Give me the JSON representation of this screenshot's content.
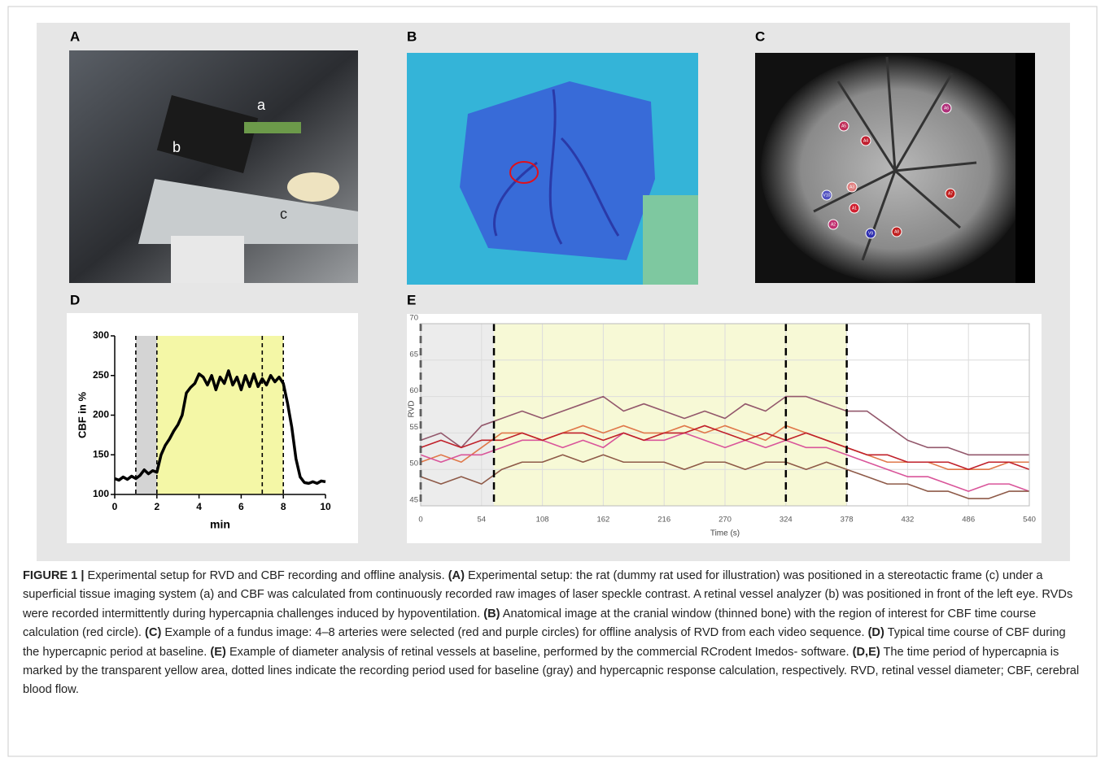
{
  "panels": {
    "A": "A",
    "B": "B",
    "C": "C",
    "D": "D",
    "E": "E"
  },
  "photo_a_labels": [
    "a",
    "b",
    "c"
  ],
  "photo_c_markers": [
    {
      "label": "A5",
      "color": "#c0305a"
    },
    {
      "label": "A4",
      "color": "#c02030"
    },
    {
      "label": "A6",
      "color": "#b0307a"
    },
    {
      "label": "A3",
      "color": "#e08080"
    },
    {
      "label": "V10",
      "color": "#5050c0"
    },
    {
      "label": "A1",
      "color": "#d02030"
    },
    {
      "label": "A7",
      "color": "#c02020"
    },
    {
      "label": "A2",
      "color": "#c03070"
    },
    {
      "label": "V9",
      "color": "#3030b0"
    },
    {
      "label": "A8",
      "color": "#c02020"
    }
  ],
  "chart_data": [
    {
      "type": "line",
      "xlabel": "min",
      "ylabel": "CBF in %",
      "xlim": [
        0,
        10
      ],
      "ylim": [
        100,
        300
      ],
      "xticks": [
        0,
        2,
        4,
        6,
        8,
        10
      ],
      "yticks": [
        100,
        150,
        200,
        250,
        300
      ],
      "grid": false,
      "color": "#000000",
      "shaded": [
        {
          "from": 1,
          "to": 2,
          "color": "#d4d4d4"
        },
        {
          "from": 2,
          "to": 8,
          "color": "#f4f7a6"
        }
      ],
      "dashed_lines": [
        1,
        2,
        7,
        8
      ],
      "x": [
        0,
        0.2,
        0.4,
        0.6,
        0.8,
        1,
        1.2,
        1.4,
        1.6,
        1.8,
        2,
        2.2,
        2.4,
        2.6,
        2.8,
        3,
        3.2,
        3.4,
        3.6,
        3.8,
        4,
        4.2,
        4.4,
        4.6,
        4.8,
        5,
        5.2,
        5.4,
        5.6,
        5.8,
        6,
        6.2,
        6.4,
        6.6,
        6.8,
        7,
        7.2,
        7.4,
        7.6,
        7.8,
        8,
        8.2,
        8.4,
        8.6,
        8.8,
        9,
        9.2,
        9.4,
        9.6,
        9.8,
        10
      ],
      "values": [
        120,
        118,
        122,
        119,
        123,
        120,
        124,
        131,
        126,
        130,
        128,
        150,
        162,
        170,
        180,
        188,
        200,
        228,
        235,
        240,
        252,
        248,
        238,
        250,
        232,
        248,
        240,
        256,
        238,
        248,
        232,
        250,
        236,
        252,
        236,
        246,
        238,
        250,
        242,
        248,
        240,
        215,
        185,
        145,
        122,
        115,
        114,
        116,
        114,
        117,
        116
      ]
    },
    {
      "type": "line",
      "xlabel": "Time (s)",
      "ylabel": "RVD",
      "xlim": [
        0,
        540
      ],
      "ylim": [
        45,
        70
      ],
      "xticks": [
        0,
        54,
        108,
        162,
        216,
        270,
        324,
        378,
        432,
        486,
        540
      ],
      "yticks": [
        45,
        50,
        55,
        60,
        65,
        70
      ],
      "grid": true,
      "shaded": [
        {
          "from": 0,
          "to": 65,
          "color": "#ececec"
        },
        {
          "from": 65,
          "to": 378,
          "color": "#f7f9d6"
        }
      ],
      "dashed_lines": [
        0,
        65,
        324,
        378
      ],
      "x": [
        0,
        18,
        36,
        54,
        72,
        90,
        108,
        126,
        144,
        162,
        180,
        198,
        216,
        234,
        252,
        270,
        288,
        306,
        324,
        342,
        360,
        378,
        396,
        414,
        432,
        450,
        468,
        486,
        504,
        522,
        540
      ],
      "series": [
        {
          "color": "#93586c",
          "values": [
            54,
            55,
            53,
            56,
            57,
            58,
            57,
            58,
            59,
            60,
            58,
            59,
            58,
            57,
            58,
            57,
            59,
            58,
            60,
            60,
            59,
            58,
            58,
            56,
            54,
            53,
            53,
            52,
            52,
            52,
            52
          ]
        },
        {
          "color": "#e0784a",
          "values": [
            51,
            52,
            51,
            53,
            55,
            55,
            54,
            55,
            56,
            55,
            56,
            55,
            55,
            56,
            55,
            56,
            55,
            54,
            56,
            55,
            54,
            53,
            52,
            51,
            51,
            51,
            50,
            50,
            50,
            51,
            51
          ]
        },
        {
          "color": "#d9559a",
          "values": [
            52,
            51,
            52,
            52,
            53,
            54,
            54,
            53,
            54,
            53,
            55,
            54,
            54,
            55,
            54,
            53,
            54,
            53,
            54,
            53,
            53,
            52,
            51,
            50,
            49,
            49,
            48,
            47,
            48,
            48,
            47
          ]
        },
        {
          "color": "#8e5a48",
          "values": [
            49,
            48,
            49,
            48,
            50,
            51,
            51,
            52,
            51,
            52,
            51,
            51,
            51,
            50,
            51,
            51,
            50,
            51,
            51,
            50,
            51,
            50,
            49,
            48,
            48,
            47,
            47,
            46,
            46,
            47,
            47
          ]
        },
        {
          "color": "#c0202a",
          "values": [
            53,
            54,
            53,
            54,
            54,
            55,
            54,
            55,
            55,
            54,
            55,
            54,
            55,
            55,
            56,
            55,
            54,
            55,
            54,
            55,
            54,
            53,
            52,
            52,
            51,
            51,
            51,
            50,
            51,
            51,
            50
          ]
        }
      ]
    }
  ],
  "caption": [
    {
      "text": "FIGURE 1 |",
      "bold": true
    },
    {
      "text": " Experimental setup for RVD and CBF recording and offline analysis. ",
      "bold": false
    },
    {
      "text": "(A)",
      "bold": true
    },
    {
      "text": " Experimental setup: the rat (dummy rat used for illustration) was positioned in a stereotactic frame (c) under a superficial tissue imaging system (a) and CBF was calculated from continuously recorded raw images of laser speckle contrast. A retinal vessel analyzer (b) was positioned in front of the left eye. RVDs were recorded intermittently during hypercapnia challenges induced by hypoventilation. ",
      "bold": false
    },
    {
      "text": "(B)",
      "bold": true
    },
    {
      "text": " Anatomical image at the cranial window (thinned bone) with the region of interest for CBF time course calculation (red circle). ",
      "bold": false
    },
    {
      "text": "(C)",
      "bold": true
    },
    {
      "text": " Example of a fundus image: 4–8 arteries were selected (red and purple circles) for offline analysis of RVD from each video sequence. ",
      "bold": false
    },
    {
      "text": "(D)",
      "bold": true
    },
    {
      "text": " Typical time course of CBF during the hypercapnic period at baseline. ",
      "bold": false
    },
    {
      "text": "(E)",
      "bold": true
    },
    {
      "text": " Example of diameter analysis of retinal vessels at baseline, performed by the commercial RCrodent Imedos- software. ",
      "bold": false
    },
    {
      "text": "(D,E)",
      "bold": true
    },
    {
      "text": " The time period of hypercapnia is marked by the transparent yellow area, dotted lines indicate the recording period used for baseline (gray) and hypercapnic response calculation, respectively. RVD, retinal vessel diameter; CBF, cerebral blood flow.",
      "bold": false
    }
  ]
}
